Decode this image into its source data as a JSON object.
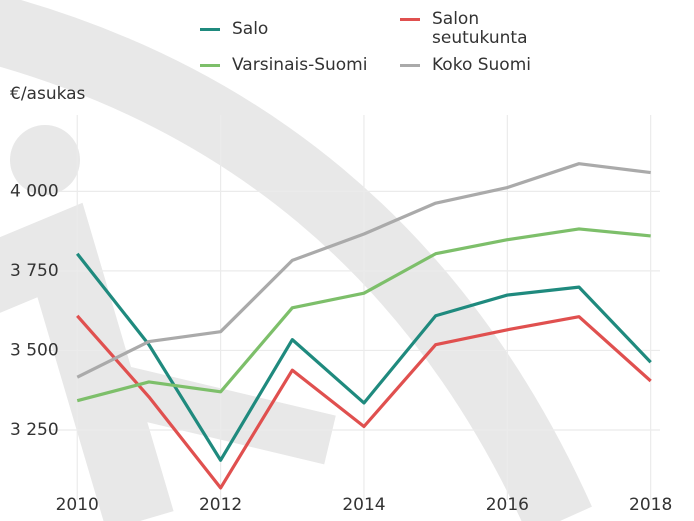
{
  "chart_data": {
    "type": "line",
    "y_label": "€/asukas",
    "x": [
      2010,
      2011,
      2012,
      2013,
      2014,
      2015,
      2016,
      2017,
      2018
    ],
    "xlim": [
      2009.55,
      2018.13
    ],
    "xticks": [
      2010,
      2012,
      2014,
      2016,
      2018
    ],
    "ylim": [
      3030,
      4240
    ],
    "yticks": [
      {
        "value": 3250,
        "label": "3 250"
      },
      {
        "value": 3500,
        "label": "3 500"
      },
      {
        "value": 3750,
        "label": "3 750"
      },
      {
        "value": 4000,
        "label": "4 000"
      }
    ],
    "grid": true,
    "series": [
      {
        "name": "Salo",
        "color": "#1f8a7e",
        "values": [
          3804,
          3518,
          3155,
          3534,
          3335,
          3609,
          3674,
          3699,
          3463
        ]
      },
      {
        "name": "Salon seutukunta",
        "color": "#e0504f",
        "values": [
          3609,
          3354,
          3068,
          3438,
          3261,
          3518,
          3565,
          3606,
          3404
        ]
      },
      {
        "name": "Varsinais-Suomi",
        "color": "#7dbf6a",
        "values": [
          3342,
          3401,
          3370,
          3634,
          3680,
          3804,
          3848,
          3882,
          3860
        ]
      },
      {
        "name": "Koko Suomi",
        "color": "#aaaaaa",
        "values": [
          3416,
          3528,
          3559,
          3783,
          3866,
          3963,
          4012,
          4087,
          4059
        ]
      }
    ]
  }
}
